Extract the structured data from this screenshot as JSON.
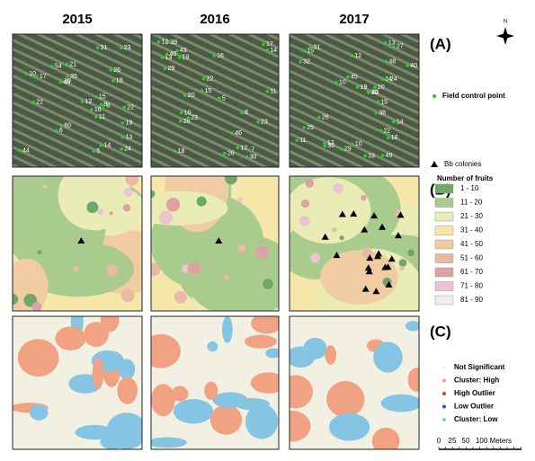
{
  "years": [
    "2015",
    "2016",
    "2017"
  ],
  "panel_labels": [
    "(A)",
    "(B)",
    "(C)"
  ],
  "north": "N",
  "point_labels": [
    [
      "44",
      "54",
      "9",
      "6",
      "8",
      "11",
      "26",
      "60",
      "31",
      "15",
      "13",
      "22",
      "19",
      "16",
      "24",
      "30",
      "18",
      "17",
      "35",
      "22",
      "14",
      "10",
      "12",
      "21",
      "23",
      "43",
      "5"
    ],
    [
      "7",
      "23",
      "17",
      "8",
      "12",
      "13",
      "45",
      "39",
      "26",
      "19",
      "28",
      "20",
      "11",
      "46",
      "15",
      "29",
      "30",
      "18",
      "16",
      "10",
      "43",
      "23",
      "5",
      "14",
      "22",
      "12"
    ],
    [
      "15",
      "20",
      "33",
      "49",
      "38",
      "48",
      "25",
      "43",
      "19",
      "12",
      "15",
      "10",
      "26",
      "31",
      "11",
      "27",
      "34",
      "29",
      "13",
      "40",
      "20",
      "32",
      "22",
      "17",
      "24",
      "45",
      "36",
      "14",
      "10",
      "18"
    ]
  ],
  "legend_a": {
    "label": "Field control point",
    "color": "#2ecc2e"
  },
  "legend_b": {
    "colonies": "Bb colonies",
    "title": "Number of fruits",
    "items": [
      {
        "label": "1 - 10",
        "color": "#6fa66a"
      },
      {
        "label": "11 - 20",
        "color": "#a9cb8d"
      },
      {
        "label": "21 - 30",
        "color": "#e9ecb5"
      },
      {
        "label": "31 - 40",
        "color": "#f6e6aa"
      },
      {
        "label": "41 - 50",
        "color": "#f1cca2"
      },
      {
        "label": "51 - 60",
        "color": "#e7bba3"
      },
      {
        "label": "61 - 70",
        "color": "#dca3a2"
      },
      {
        "label": "71 - 80",
        "color": "#e8c5d1"
      },
      {
        "label": "81 - 90",
        "color": "#f4ebf4"
      }
    ]
  },
  "legend_c": {
    "items": [
      {
        "label": "Not Significant",
        "color": "#f2f0e2"
      },
      {
        "label": "Cluster: High",
        "color": "#f0a282"
      },
      {
        "label": "High Outlier",
        "color": "#e03434"
      },
      {
        "label": "Low Outlier",
        "color": "#3452c2"
      },
      {
        "label": "Cluster: Low",
        "color": "#86c4e4"
      }
    ]
  },
  "scale_bar": [
    "0",
    "25",
    "50",
    "100 Meters"
  ]
}
